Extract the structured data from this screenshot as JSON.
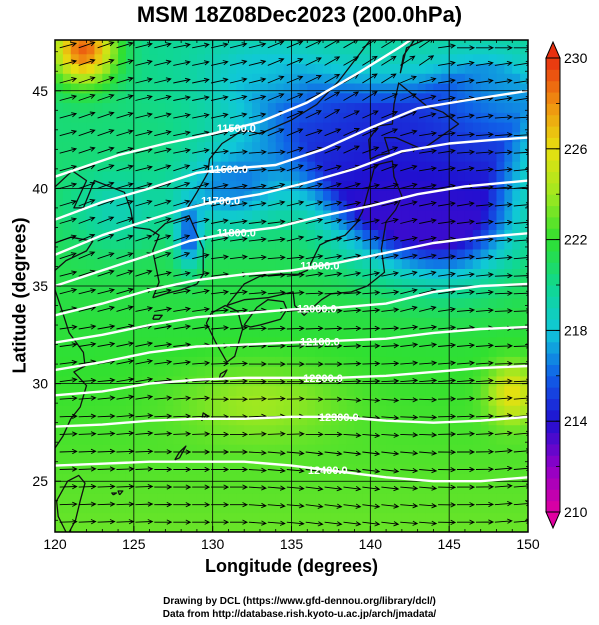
{
  "chart_data": {
    "type": "heatmap",
    "title": "MSM 18Z08Dec2023 (200.0hPa)",
    "xlabel": "Longitude (degrees)",
    "ylabel": "Latitude  (degrees)",
    "xlim": [
      120,
      150
    ],
    "ylim": [
      22.4,
      47.6
    ],
    "x_ticks": [
      120,
      125,
      130,
      135,
      140,
      145,
      150
    ],
    "y_ticks": [
      25,
      30,
      35,
      40,
      45
    ],
    "colorbar": {
      "range": [
        210,
        230
      ],
      "ticks": [
        210,
        214,
        218,
        222,
        226,
        230
      ],
      "stops": [
        {
          "value": 210,
          "color": "#e000a0"
        },
        {
          "value": 212,
          "color": "#9000c8"
        },
        {
          "value": 214,
          "color": "#2010d0"
        },
        {
          "value": 216,
          "color": "#1060e8"
        },
        {
          "value": 218,
          "color": "#10c8d8"
        },
        {
          "value": 220,
          "color": "#10d890"
        },
        {
          "value": 222,
          "color": "#30e030"
        },
        {
          "value": 224,
          "color": "#a0e820"
        },
        {
          "value": 226,
          "color": "#e8e010"
        },
        {
          "value": 228,
          "color": "#f09010"
        },
        {
          "value": 230,
          "color": "#e83010"
        }
      ]
    },
    "temperature_features": [
      {
        "lon": 121.8,
        "lat": 47.2,
        "value": 229,
        "sx": 2.0,
        "sy": 1.8
      },
      {
        "lon": 138,
        "lat": 43,
        "value": 215,
        "sx": 6,
        "sy": 3
      },
      {
        "lon": 141,
        "lat": 40,
        "value": 213.5,
        "sx": 4,
        "sy": 3
      },
      {
        "lon": 145,
        "lat": 38.5,
        "value": 213.5,
        "sx": 4,
        "sy": 3
      },
      {
        "lon": 131,
        "lat": 40,
        "value": 217,
        "sx": 3,
        "sy": 2
      },
      {
        "lon": 128.5,
        "lat": 37.5,
        "value": 216,
        "sx": 0.8,
        "sy": 1.5
      },
      {
        "lon": 133,
        "lat": 46,
        "value": 218.5,
        "sx": 4,
        "sy": 2
      },
      {
        "lon": 146,
        "lat": 43,
        "value": 215,
        "sx": 4,
        "sy": 3
      },
      {
        "lon": 124,
        "lat": 39,
        "value": 219,
        "sx": 3,
        "sy": 2
      },
      {
        "lon": 133,
        "lat": 29,
        "value": 224,
        "sx": 5,
        "sy": 2
      },
      {
        "lon": 149,
        "lat": 29.5,
        "value": 226,
        "sx": 1.5,
        "sy": 1.5
      },
      {
        "lon": 148,
        "lat": 45,
        "value": 218,
        "sx": 3,
        "sy": 2
      }
    ],
    "height_contours": [
      {
        "label": "11500.0",
        "label_lon": 131.5,
        "points": [
          [
            120,
            40.6
          ],
          [
            124,
            41.7
          ],
          [
            127,
            42.3
          ],
          [
            130,
            42.8
          ],
          [
            133,
            43.4
          ],
          [
            136,
            44.4
          ],
          [
            139,
            45.8
          ],
          [
            142,
            47.3
          ],
          [
            144,
            48.4
          ]
        ]
      },
      {
        "label": "11600.0",
        "label_lon": 131.0,
        "points": [
          [
            120,
            38.4
          ],
          [
            123,
            39.3
          ],
          [
            126,
            40.0
          ],
          [
            129,
            40.8
          ],
          [
            131,
            41.0
          ],
          [
            134,
            41.2
          ],
          [
            137,
            42.0
          ],
          [
            140,
            43.1
          ],
          [
            143,
            44.1
          ],
          [
            146,
            44.5
          ],
          [
            150,
            45.0
          ]
        ]
      },
      {
        "label": "11700.0",
        "label_lon": 130.5,
        "points": [
          [
            120,
            36.6
          ],
          [
            123,
            37.6
          ],
          [
            126,
            38.4
          ],
          [
            128,
            38.9
          ],
          [
            130,
            39.3
          ],
          [
            133,
            39.7
          ],
          [
            136,
            40.3
          ],
          [
            139,
            41.0
          ],
          [
            142,
            41.9
          ],
          [
            145,
            42.3
          ],
          [
            148,
            42.5
          ],
          [
            150,
            42.6
          ]
        ]
      },
      {
        "label": "11800.0",
        "label_lon": 131.5,
        "points": [
          [
            120,
            35.0
          ],
          [
            123,
            35.8
          ],
          [
            126,
            36.6
          ],
          [
            128.5,
            37.3
          ],
          [
            131,
            37.7
          ],
          [
            134,
            38.0
          ],
          [
            137,
            38.6
          ],
          [
            140,
            39.1
          ],
          [
            143,
            39.7
          ],
          [
            146,
            40.1
          ],
          [
            150,
            40.4
          ]
        ]
      },
      {
        "label": "11900.0",
        "label_lon": 136.8,
        "points": [
          [
            120,
            33.5
          ],
          [
            123,
            34.1
          ],
          [
            126,
            34.8
          ],
          [
            129,
            35.3
          ],
          [
            132,
            35.6
          ],
          [
            135,
            35.8
          ],
          [
            138,
            36.2
          ],
          [
            141,
            36.7
          ],
          [
            144,
            37.2
          ],
          [
            147,
            37.5
          ],
          [
            150,
            37.7
          ]
        ]
      },
      {
        "label": "12000.0",
        "label_lon": 136.6,
        "points": [
          [
            120,
            32.1
          ],
          [
            123,
            32.5
          ],
          [
            126,
            33.0
          ],
          [
            129,
            33.4
          ],
          [
            132,
            33.6
          ],
          [
            135,
            33.8
          ],
          [
            138,
            33.9
          ],
          [
            141,
            34.1
          ],
          [
            144,
            34.7
          ],
          [
            147,
            35.0
          ],
          [
            150,
            35.1
          ]
        ]
      },
      {
        "label": "12100.0",
        "label_lon": 136.8,
        "points": [
          [
            120,
            30.7
          ],
          [
            123,
            31.1
          ],
          [
            126,
            31.6
          ],
          [
            129,
            31.9
          ],
          [
            132,
            32.0
          ],
          [
            135,
            32.1
          ],
          [
            138,
            32.2
          ],
          [
            141,
            32.3
          ],
          [
            144,
            32.6
          ],
          [
            147,
            32.8
          ],
          [
            150,
            32.9
          ]
        ]
      },
      {
        "label": "12200.0",
        "label_lon": 137.0,
        "points": [
          [
            120,
            29.4
          ],
          [
            123,
            29.6
          ],
          [
            126,
            30.0
          ],
          [
            129,
            30.2
          ],
          [
            132,
            30.3
          ],
          [
            135,
            30.3
          ],
          [
            138,
            30.3
          ],
          [
            141,
            30.4
          ],
          [
            144,
            30.6
          ],
          [
            147,
            30.8
          ],
          [
            150,
            30.9
          ]
        ]
      },
      {
        "label": "12300.0",
        "label_lon": 138.0,
        "points": [
          [
            120,
            27.8
          ],
          [
            123,
            27.9
          ],
          [
            126,
            28.1
          ],
          [
            129,
            28.2
          ],
          [
            132,
            28.2
          ],
          [
            135,
            28.3
          ],
          [
            138,
            28.3
          ],
          [
            141,
            28.1
          ],
          [
            144,
            28.0
          ],
          [
            147,
            28.1
          ],
          [
            150,
            28.3
          ]
        ]
      },
      {
        "label": "12400.0",
        "label_lon": 137.3,
        "points": [
          [
            120,
            25.8
          ],
          [
            123,
            25.9
          ],
          [
            126,
            26.0
          ],
          [
            129,
            26.0
          ],
          [
            132,
            26.0
          ],
          [
            135,
            25.8
          ],
          [
            138,
            25.5
          ],
          [
            141,
            25.2
          ],
          [
            144,
            25.0
          ],
          [
            147,
            25.0
          ],
          [
            150,
            25.2
          ]
        ]
      }
    ],
    "coastlines": [
      [
        [
          130.9,
          31.1
        ],
        [
          131.4,
          31.4
        ],
        [
          131.9,
          32.8
        ],
        [
          131.6,
          33.7
        ],
        [
          130.8,
          34.0
        ],
        [
          129.9,
          33.6
        ],
        [
          129.6,
          33.1
        ],
        [
          130.2,
          32.1
        ],
        [
          130.9,
          31.1
        ]
      ],
      [
        [
          130.9,
          34.0
        ],
        [
          132.0,
          34.3
        ],
        [
          133.5,
          34.4
        ],
        [
          135.1,
          34.7
        ],
        [
          135.2,
          34.0
        ],
        [
          135.8,
          33.5
        ],
        [
          136.9,
          34.3
        ],
        [
          137.5,
          34.6
        ],
        [
          138.8,
          34.7
        ],
        [
          139.8,
          35.0
        ],
        [
          140.9,
          35.7
        ],
        [
          140.7,
          36.9
        ],
        [
          141.0,
          38.3
        ],
        [
          141.6,
          38.9
        ],
        [
          142.0,
          39.6
        ],
        [
          141.5,
          40.6
        ],
        [
          141.4,
          41.4
        ],
        [
          140.3,
          41.2
        ],
        [
          139.9,
          40.0
        ],
        [
          139.5,
          38.8
        ],
        [
          139.1,
          38.2
        ],
        [
          138.4,
          37.6
        ],
        [
          137.3,
          37.3
        ],
        [
          136.8,
          37.1
        ],
        [
          136.0,
          35.8
        ],
        [
          135.4,
          35.6
        ],
        [
          134.2,
          35.6
        ],
        [
          133.0,
          35.5
        ],
        [
          132.0,
          35.1
        ],
        [
          130.9,
          34.0
        ]
      ],
      [
        [
          132.0,
          33.0
        ],
        [
          132.4,
          32.9
        ],
        [
          133.0,
          33.0
        ],
        [
          134.3,
          33.3
        ],
        [
          134.7,
          33.8
        ],
        [
          134.5,
          34.2
        ],
        [
          133.5,
          34.3
        ],
        [
          132.8,
          33.9
        ],
        [
          132.0,
          33.0
        ]
      ],
      [
        [
          140.0,
          41.5
        ],
        [
          140.5,
          41.7
        ],
        [
          141.2,
          41.8
        ],
        [
          140.9,
          42.6
        ],
        [
          141.6,
          42.6
        ],
        [
          143.3,
          42.0
        ],
        [
          145.6,
          43.3
        ],
        [
          144.6,
          43.9
        ],
        [
          143.6,
          44.2
        ],
        [
          141.8,
          45.4
        ],
        [
          141.5,
          44.3
        ],
        [
          141.4,
          43.3
        ],
        [
          140.5,
          43.2
        ],
        [
          139.9,
          42.5
        ],
        [
          140.0,
          41.5
        ]
      ],
      [
        [
          141.9,
          45.9
        ],
        [
          142.1,
          46.8
        ],
        [
          142.8,
          47.6
        ],
        [
          143.4,
          47.6
        ],
        [
          142.3,
          47.2
        ],
        [
          141.9,
          45.9
        ]
      ],
      [
        [
          126.2,
          34.4
        ],
        [
          126.6,
          35.2
        ],
        [
          126.2,
          36.8
        ],
        [
          126.6,
          37.6
        ],
        [
          126.0,
          37.9
        ],
        [
          125.0,
          38.0
        ],
        [
          124.8,
          38.9
        ],
        [
          124.4,
          39.8
        ],
        [
          122.5,
          40.4
        ],
        [
          121.8,
          39.0
        ],
        [
          121.2,
          39.0
        ],
        [
          122.0,
          40.4
        ],
        [
          121.1,
          40.9
        ],
        [
          119.9,
          40.0
        ]
      ],
      [
        [
          120.0,
          37.2
        ],
        [
          121.0,
          37.5
        ],
        [
          122.4,
          37.3
        ],
        [
          122.0,
          36.8
        ],
        [
          120.7,
          36.3
        ],
        [
          120.0,
          35.8
        ]
      ],
      [
        [
          120.0,
          34.8
        ],
        [
          120.5,
          33.6
        ],
        [
          120.9,
          32.6
        ],
        [
          121.8,
          31.6
        ],
        [
          121.9,
          30.9
        ],
        [
          121.2,
          30.6
        ],
        [
          122.0,
          29.9
        ],
        [
          121.6,
          28.8
        ],
        [
          121.0,
          28.2
        ],
        [
          120.5,
          27.3
        ],
        [
          120.0,
          26.7
        ]
      ],
      [
        [
          120.7,
          22.4
        ],
        [
          120.2,
          23.2
        ],
        [
          120.1,
          24.0
        ],
        [
          120.8,
          25.0
        ],
        [
          121.5,
          25.3
        ],
        [
          121.9,
          24.9
        ],
        [
          121.6,
          24.0
        ],
        [
          121.3,
          23.0
        ],
        [
          120.9,
          22.4
        ]
      ],
      [
        [
          126.2,
          37.6
        ],
        [
          127.0,
          38.2
        ],
        [
          128.5,
          38.6
        ],
        [
          129.4,
          36.9
        ],
        [
          129.4,
          35.6
        ],
        [
          129.0,
          35.1
        ],
        [
          128.0,
          34.8
        ],
        [
          127.0,
          34.6
        ],
        [
          126.2,
          34.4
        ]
      ],
      [
        [
          128.4,
          39.0
        ],
        [
          129.0,
          39.8
        ],
        [
          129.7,
          40.8
        ],
        [
          129.8,
          41.5
        ],
        [
          130.6,
          42.3
        ],
        [
          131.2,
          42.6
        ],
        [
          131.9,
          43.0
        ],
        [
          133.0,
          42.8
        ],
        [
          135.0,
          43.5
        ],
        [
          136.6,
          44.3
        ],
        [
          138.0,
          45.5
        ],
        [
          140.0,
          47.6
        ]
      ],
      [
        [
          126.2,
          33.3
        ],
        [
          126.6,
          33.3
        ],
        [
          126.8,
          33.5
        ],
        [
          126.3,
          33.5
        ],
        [
          126.2,
          33.3
        ]
      ],
      [
        [
          127.6,
          26.1
        ],
        [
          127.9,
          26.5
        ],
        [
          128.3,
          26.8
        ],
        [
          127.9,
          26.2
        ],
        [
          127.6,
          26.1
        ]
      ],
      [
        [
          129.3,
          28.1
        ],
        [
          129.6,
          28.4
        ],
        [
          129.4,
          28.5
        ],
        [
          129.3,
          28.1
        ]
      ],
      [
        [
          130.4,
          30.2
        ],
        [
          130.7,
          30.4
        ],
        [
          130.9,
          30.7
        ],
        [
          130.5,
          30.5
        ],
        [
          130.4,
          30.2
        ]
      ],
      [
        [
          124.1,
          24.3
        ],
        [
          124.3,
          24.5
        ],
        [
          124.0,
          24.5
        ],
        [
          124.1,
          24.3
        ]
      ],
      [
        [
          123.7,
          24.3
        ],
        [
          123.9,
          24.4
        ],
        [
          123.6,
          24.4
        ],
        [
          123.7,
          24.3
        ]
      ]
    ]
  },
  "credits": {
    "line1": "Drawing by DCL (https://www.gfd-dennou.org/library/dcl/)",
    "line2": "Data from http://database.rish.kyoto-u.ac.jp/arch/jmadata/"
  }
}
